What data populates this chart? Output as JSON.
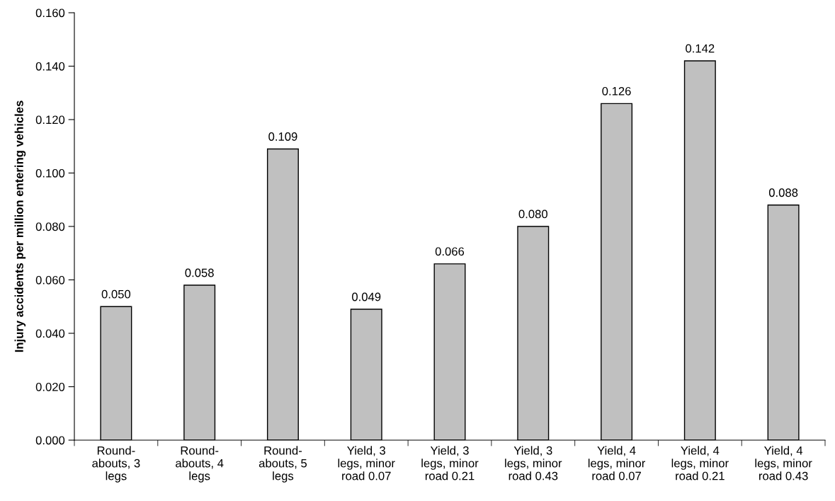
{
  "chart_data": {
    "type": "bar",
    "ylabel": "Injury accidents per million entering vehicles",
    "categories": [
      "Round-\nabouts, 3\nlegs",
      "Round-\nabouts, 4\nlegs",
      "Round-\nabouts, 5\nlegs",
      "Yield, 3\nlegs, minor\nroad 0.07",
      "Yield, 3\nlegs, minor\nroad 0.21",
      "Yield, 3\nlegs, minor\nroad 0.43",
      "Yield, 4\nlegs, minor\nroad 0.07",
      "Yield, 4\nlegs, minor\nroad 0.21",
      "Yield, 4\nlegs, minor\nroad 0.43"
    ],
    "values": [
      0.05,
      0.058,
      0.109,
      0.049,
      0.066,
      0.08,
      0.126,
      0.142,
      0.088
    ],
    "value_labels": [
      "0.050",
      "0.058",
      "0.109",
      "0.049",
      "0.066",
      "0.080",
      "0.126",
      "0.142",
      "0.088"
    ],
    "color": "#c0c0c0",
    "ylim": [
      0,
      0.16
    ],
    "yticks": [
      {
        "value": 0,
        "label": "0.000"
      },
      {
        "value": 0.02,
        "label": "0.020"
      },
      {
        "value": 0.04,
        "label": "0.040"
      },
      {
        "value": 0.06,
        "label": "0.060"
      },
      {
        "value": 0.08,
        "label": "0.080"
      },
      {
        "value": 0.1,
        "label": "0.100"
      },
      {
        "value": 0.12,
        "label": "0.120"
      },
      {
        "value": 0.14,
        "label": "0.140"
      },
      {
        "value": 0.16,
        "label": "0.160"
      }
    ],
    "grid": false,
    "legend": false
  }
}
